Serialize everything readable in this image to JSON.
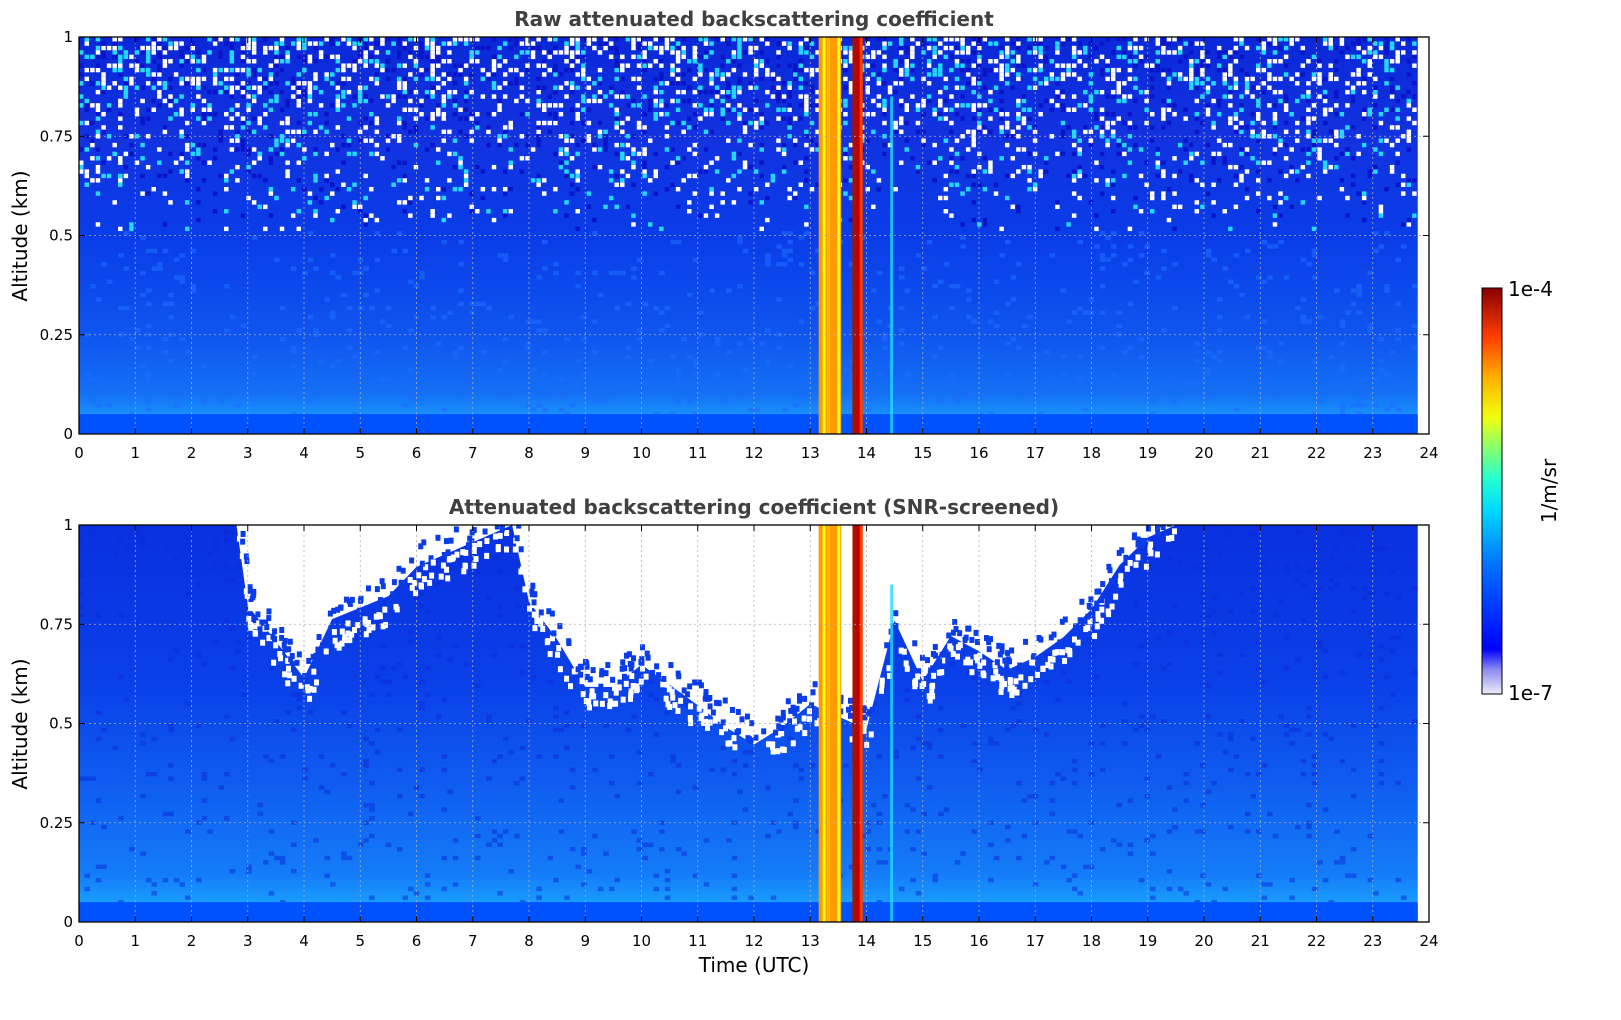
{
  "chart_data": [
    {
      "type": "heatmap",
      "title": "Raw attenuated backscattering coefficient",
      "xlabel": "",
      "ylabel": "Altitude (km)",
      "xlim": [
        0,
        24
      ],
      "ylim": [
        0,
        1
      ],
      "x_ticks": [
        "0",
        "1",
        "2",
        "3",
        "4",
        "5",
        "6",
        "7",
        "8",
        "9",
        "10",
        "11",
        "12",
        "13",
        "14",
        "15",
        "16",
        "17",
        "18",
        "19",
        "20",
        "21",
        "22",
        "23",
        "24"
      ],
      "y_ticks": [
        "0",
        "0.25",
        "0.5",
        "0.75",
        "1"
      ],
      "grid": true,
      "colorscale": "jet",
      "data_coverage_x": [
        0,
        23.8
      ],
      "features": [
        {
          "description": "aerosol layer",
          "x_range": [
            0,
            23.8
          ],
          "y_range": [
            0,
            0.05
          ],
          "value": 6e-07
        },
        {
          "description": "high backscatter / cloud",
          "x_range": [
            13.15,
            13.55
          ],
          "y_range": [
            0,
            1
          ],
          "value": 2.5e-05
        },
        {
          "description": "high backscatter / cloud",
          "x_range": [
            13.75,
            13.92
          ],
          "y_range": [
            0,
            1
          ],
          "value": 8e-05
        },
        {
          "description": "noisy region",
          "x_range": [
            0,
            23.8
          ],
          "y_range": [
            0.55,
            1
          ],
          "value": 1.5e-07
        }
      ]
    },
    {
      "type": "heatmap",
      "title": "Attenuated backscattering coefficient (SNR-screened)",
      "xlabel": "Time (UTC)",
      "ylabel": "Altitude (km)",
      "xlim": [
        0,
        24
      ],
      "ylim": [
        0,
        1
      ],
      "x_ticks": [
        "0",
        "1",
        "2",
        "3",
        "4",
        "5",
        "6",
        "7",
        "8",
        "9",
        "10",
        "11",
        "12",
        "13",
        "14",
        "15",
        "16",
        "17",
        "18",
        "19",
        "20",
        "21",
        "22",
        "23",
        "24"
      ],
      "y_ticks": [
        "0",
        "0.25",
        "0.5",
        "0.75",
        "1"
      ],
      "grid": true,
      "colorscale": "jet",
      "data_coverage_x": [
        0,
        23.8
      ],
      "screened_top_profile": {
        "x": [
          0,
          2.8,
          3.0,
          3.5,
          4.0,
          4.5,
          5.0,
          5.5,
          6.0,
          7.7,
          8.0,
          8.5,
          9.0,
          9.5,
          10.0,
          11.0,
          11.5,
          12.0,
          12.5,
          13.0,
          14.0,
          14.5,
          15.0,
          15.5,
          16.0,
          16.5,
          17.0,
          17.5,
          18.0,
          18.5,
          19.0,
          19.5,
          23.8
        ],
        "y": [
          1.0,
          1.0,
          0.8,
          0.7,
          0.6,
          0.75,
          0.78,
          0.82,
          0.9,
          1.0,
          0.82,
          0.7,
          0.6,
          0.6,
          0.65,
          0.55,
          0.5,
          0.45,
          0.5,
          0.55,
          0.5,
          0.75,
          0.6,
          0.72,
          0.68,
          0.63,
          0.68,
          0.72,
          0.78,
          0.9,
          0.97,
          1.0,
          1.0
        ]
      },
      "features": [
        {
          "description": "aerosol layer",
          "x_range": [
            0,
            23.8
          ],
          "y_range": [
            0,
            0.05
          ],
          "value": 6e-07
        },
        {
          "description": "high backscatter / cloud",
          "x_range": [
            13.15,
            13.55
          ],
          "y_range": [
            0,
            1
          ],
          "value": 2.5e-05
        },
        {
          "description": "high backscatter / cloud",
          "x_range": [
            13.75,
            13.92
          ],
          "y_range": [
            0,
            1
          ],
          "value": 8e-05
        }
      ]
    }
  ],
  "colorbar": {
    "label": "1/m/sr",
    "max_label": "1e-4",
    "min_label": "1e-7",
    "scale": "log",
    "range": [
      1e-07,
      0.0001
    ]
  }
}
